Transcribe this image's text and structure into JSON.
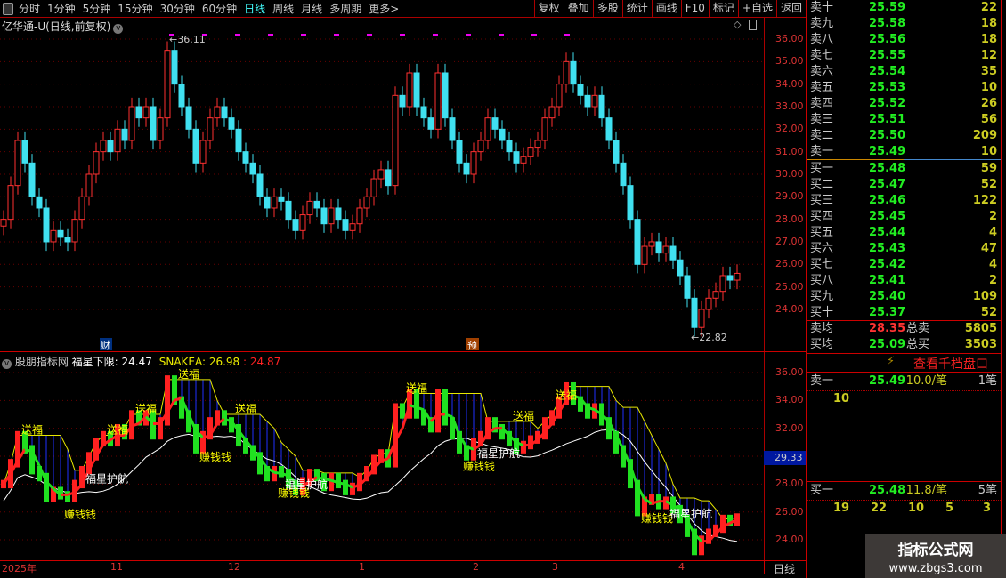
{
  "toolbar": {
    "periods": [
      "分时",
      "1分钟",
      "5分钟",
      "15分钟",
      "30分钟",
      "60分钟",
      "日线",
      "周线",
      "月线",
      "多周期",
      "更多>"
    ],
    "active": "日线",
    "buttons": [
      "复权",
      "叠加",
      "多股",
      "统计",
      "画线",
      "F10",
      "标记",
      "+自选",
      "返回"
    ]
  },
  "main": {
    "title": "亿华通-U(日线,前复权)",
    "high_label": "36.11",
    "low_label": "22.82",
    "marks": [
      "财",
      "预"
    ],
    "price_axis": [
      "36.00",
      "35.00",
      "34.00",
      "33.00",
      "32.00",
      "31.00",
      "30.00",
      "29.00",
      "28.00",
      "27.00",
      "26.00",
      "25.00",
      "24.00"
    ],
    "closes": [
      28.0,
      29.5,
      31.5,
      30.5,
      29.0,
      28.5,
      27.0,
      27.5,
      27.2,
      27.0,
      28.0,
      29.0,
      30.0,
      31.0,
      31.5,
      31.0,
      32.0,
      31.5,
      33.0,
      32.5,
      33.0,
      31.5,
      32.5,
      35.5,
      34.0,
      33.0,
      32.0,
      30.5,
      31.5,
      32.5,
      33.0,
      32.5,
      32.0,
      31.0,
      30.5,
      30.0,
      29.0,
      28.5,
      29.0,
      28.8,
      28.0,
      27.5,
      28.2,
      28.8,
      28.5,
      27.8,
      28.5,
      28.0,
      27.5,
      27.8,
      28.5,
      29.0,
      29.8,
      30.2,
      29.5,
      33.5,
      33.0,
      34.5,
      33.0,
      32.5,
      32.0,
      34.5,
      32.5,
      31.5,
      30.5,
      30.0,
      31.0,
      31.5,
      32.5,
      32.0,
      31.5,
      31.0,
      30.5,
      30.8,
      31.2,
      31.5,
      32.5,
      33.0,
      34.0,
      35.0,
      34.0,
      33.5,
      33.0,
      33.5,
      32.5,
      31.5,
      30.5,
      29.5,
      28.0,
      26.0,
      26.8,
      27.0,
      26.5,
      26.8,
      26.2,
      25.5,
      24.5,
      23.2,
      24.0,
      24.5,
      24.8,
      25.5,
      25.3,
      25.6
    ]
  },
  "indicator": {
    "name": "股朋指标网",
    "l1": "福星下限: 24.47",
    "l2": "SNAKEA: 26.98",
    "l3": ": 24.87",
    "axis": [
      "36.00",
      "34.00",
      "32.00",
      "30.00",
      "28.00",
      "26.00",
      "24.00"
    ],
    "current": "29.33",
    "labels": [
      {
        "t": "送福",
        "i": 3
      },
      {
        "t": "送福",
        "i": 15
      },
      {
        "t": "送福",
        "i": 19
      },
      {
        "t": "送福",
        "i": 25
      },
      {
        "t": "送福",
        "i": 33
      },
      {
        "t": "送福",
        "i": 57
      },
      {
        "t": "送福",
        "i": 72
      },
      {
        "t": "送福",
        "i": 78
      },
      {
        "t": "赚钱钱",
        "i": 9
      },
      {
        "t": "赚钱钱",
        "i": 28
      },
      {
        "t": "赚钱钱",
        "i": 39
      },
      {
        "t": "赚钱钱",
        "i": 65
      },
      {
        "t": "赚钱钱",
        "i": 90
      },
      {
        "t": "福星护航",
        "i": 12
      },
      {
        "t": "福星护航",
        "i": 40
      },
      {
        "t": "福星护航",
        "i": 67
      },
      {
        "t": "福星护航",
        "i": 94
      }
    ],
    "colors": {
      "up": "#ff2020",
      "down": "#20e020",
      "upper": "#e8e800",
      "lower": "#ffffff",
      "fill": "#2030ff"
    }
  },
  "dates": [
    "2025年",
    "11",
    "12",
    "1",
    "2",
    "3",
    "4"
  ],
  "period_label": "日线",
  "orderbook": {
    "sell": [
      [
        "卖十",
        "25.59",
        "22"
      ],
      [
        "卖九",
        "25.58",
        "18"
      ],
      [
        "卖八",
        "25.56",
        "18"
      ],
      [
        "卖七",
        "25.55",
        "12"
      ],
      [
        "卖六",
        "25.54",
        "35"
      ],
      [
        "卖五",
        "25.53",
        "10"
      ],
      [
        "卖四",
        "25.52",
        "26"
      ],
      [
        "卖三",
        "25.51",
        "56"
      ],
      [
        "卖二",
        "25.50",
        "209"
      ],
      [
        "卖一",
        "25.49",
        "10"
      ]
    ],
    "buy": [
      [
        "买一",
        "25.48",
        "59"
      ],
      [
        "买二",
        "25.47",
        "52"
      ],
      [
        "买三",
        "25.46",
        "122"
      ],
      [
        "买四",
        "25.45",
        "2"
      ],
      [
        "买五",
        "25.44",
        "4"
      ],
      [
        "买六",
        "25.43",
        "47"
      ],
      [
        "买七",
        "25.42",
        "4"
      ],
      [
        "买八",
        "25.41",
        "2"
      ],
      [
        "买九",
        "25.40",
        "109"
      ],
      [
        "买十",
        "25.37",
        "52"
      ]
    ],
    "avg_sell": {
      "label": "卖均",
      "price": "28.35",
      "total_label": "总卖",
      "total": "5805"
    },
    "avg_buy": {
      "label": "买均",
      "price": "25.09",
      "total_label": "总买",
      "total": "3503"
    },
    "level_link": "查看千档盘口",
    "sell1": {
      "label": "卖一",
      "price": "25.49",
      "per": "10.0/笔",
      "count": "1笔",
      "queue": [
        "10"
      ]
    },
    "buy1": {
      "label": "买一",
      "price": "25.48",
      "per": "11.8/笔",
      "count": "5笔",
      "queue": [
        "19",
        "22",
        "10",
        "5",
        "3"
      ]
    }
  },
  "watermark": {
    "title": "指标公式网",
    "url": "www.zbgs3.com"
  }
}
